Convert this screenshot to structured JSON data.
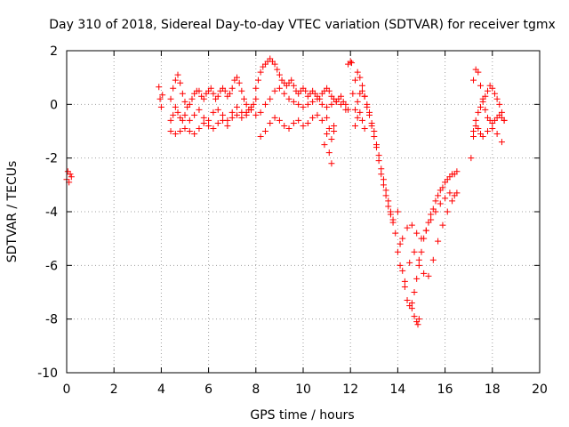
{
  "chart_data": {
    "type": "scatter",
    "title": "Day 310 of 2018, Sidereal Day-to-day VTEC variation (SDTVAR) for receiver tgmx",
    "xlabel": "GPS time / hours",
    "ylabel": "SDTVAR / TECUs",
    "xlim": [
      0,
      20
    ],
    "ylim": [
      -10,
      2
    ],
    "xticks": [
      0,
      2,
      4,
      6,
      8,
      10,
      12,
      14,
      16,
      18,
      20
    ],
    "yticks": [
      -10,
      -8,
      -6,
      -4,
      -2,
      0,
      2
    ],
    "grid": true,
    "marker": "+",
    "color": "#ff0000",
    "series": [
      {
        "name": "SDTVAR",
        "x": [
          0.0,
          0.05,
          0.1,
          0.15,
          0.2,
          3.9,
          3.95,
          4.0,
          4.05,
          4.4,
          4.5,
          4.6,
          4.7,
          4.8,
          4.9,
          5.0,
          5.1,
          5.2,
          5.3,
          5.4,
          5.5,
          5.6,
          5.7,
          5.8,
          5.9,
          6.0,
          6.1,
          6.2,
          6.3,
          6.4,
          6.5,
          6.6,
          6.7,
          6.8,
          6.9,
          7.0,
          7.1,
          7.2,
          7.3,
          7.4,
          7.5,
          7.6,
          7.7,
          7.8,
          7.9,
          8.0,
          4.4,
          4.5,
          4.6,
          4.7,
          4.8,
          4.9,
          5.0,
          5.2,
          5.4,
          5.6,
          5.8,
          6.0,
          6.2,
          6.4,
          6.6,
          6.8,
          7.0,
          7.2,
          7.4,
          7.6,
          7.8,
          4.4,
          4.6,
          4.8,
          5.0,
          5.2,
          5.4,
          5.6,
          5.8,
          6.0,
          6.2,
          6.4,
          6.6,
          6.8,
          7.0,
          7.2,
          7.4,
          7.6,
          7.8,
          8.0,
          8.0,
          8.1,
          8.2,
          8.3,
          8.4,
          8.5,
          8.6,
          8.7,
          8.8,
          8.9,
          9.0,
          9.1,
          9.2,
          9.3,
          9.4,
          9.5,
          9.6,
          9.7,
          9.8,
          9.9,
          10.0,
          10.1,
          10.2,
          10.3,
          10.4,
          10.5,
          10.6,
          10.7,
          10.8,
          10.9,
          11.0,
          11.1,
          11.2,
          11.3,
          11.4,
          11.5,
          11.6,
          11.7,
          11.8,
          11.9,
          8.2,
          8.4,
          8.6,
          8.8,
          9.0,
          9.2,
          9.4,
          9.6,
          9.8,
          10.0,
          10.2,
          10.4,
          10.6,
          10.8,
          11.0,
          11.2,
          11.4,
          11.6,
          11.8,
          8.2,
          8.4,
          8.6,
          8.8,
          9.0,
          9.2,
          9.4,
          9.6,
          9.8,
          10.0,
          10.2,
          10.4,
          10.6,
          10.8,
          11.0,
          10.9,
          11.0,
          11.1,
          11.1,
          11.2,
          11.2,
          11.3,
          11.3,
          11.9,
          12.0,
          12.05,
          12.1,
          12.2,
          12.3,
          12.4,
          12.5,
          12.6,
          12.7,
          12.8,
          12.9,
          13.0,
          13.1,
          13.2,
          13.3,
          13.4,
          13.5,
          13.6,
          13.7,
          13.8,
          13.9,
          12.2,
          12.3,
          12.4,
          12.5,
          12.6,
          12.7,
          12.8,
          12.9,
          13.0,
          13.1,
          13.2,
          13.3,
          13.4,
          13.5,
          13.6,
          13.7,
          13.8,
          12.2,
          12.3,
          12.4,
          12.5,
          12.6,
          14.0,
          14.1,
          14.2,
          14.3,
          14.4,
          14.5,
          14.6,
          14.7,
          14.8,
          14.9,
          15.0,
          15.1,
          15.2,
          15.3,
          15.4,
          15.5,
          15.6,
          15.7,
          15.8,
          15.9,
          16.0,
          16.1,
          16.2,
          16.3,
          16.4,
          16.5,
          14.0,
          14.2,
          14.4,
          14.6,
          14.8,
          15.0,
          15.2,
          15.4,
          15.6,
          15.8,
          16.0,
          16.2,
          16.4,
          14.1,
          14.3,
          14.5,
          14.7,
          14.9,
          15.1,
          15.3,
          15.5,
          15.7,
          15.9,
          16.1,
          16.3,
          16.5,
          14.6,
          14.7,
          14.8,
          14.85,
          14.9,
          17.1,
          17.2,
          17.3,
          17.4,
          17.5,
          17.6,
          17.7,
          17.8,
          17.9,
          18.0,
          18.1,
          18.2,
          18.3,
          18.4,
          18.5,
          17.2,
          17.3,
          17.4,
          17.5,
          17.6,
          17.7,
          17.8,
          17.9,
          18.0,
          18.1,
          18.2,
          18.3,
          18.4,
          18.5,
          17.2,
          17.3,
          17.4,
          17.5,
          17.6,
          17.8,
          18.0,
          18.2,
          18.4
        ],
        "y": [
          -2.8,
          -2.5,
          -2.9,
          -2.6,
          -2.7,
          0.65,
          0.2,
          -0.1,
          0.35,
          0.2,
          0.6,
          0.9,
          1.1,
          0.8,
          0.4,
          0.1,
          -0.1,
          0.0,
          0.2,
          0.4,
          0.5,
          0.5,
          0.3,
          0.2,
          0.4,
          0.5,
          0.6,
          0.4,
          0.2,
          0.3,
          0.5,
          0.6,
          0.5,
          0.3,
          0.4,
          0.6,
          0.9,
          1.0,
          0.8,
          0.5,
          0.2,
          0.0,
          -0.2,
          -0.1,
          0.0,
          0.2,
          -0.6,
          -0.4,
          -0.1,
          -0.3,
          -0.5,
          -0.6,
          -0.4,
          -0.6,
          -0.4,
          -0.2,
          -0.5,
          -0.6,
          -0.3,
          -0.2,
          -0.4,
          -0.6,
          -0.3,
          -0.1,
          -0.3,
          -0.4,
          -0.2,
          -1.0,
          -1.1,
          -1.0,
          -0.9,
          -1.0,
          -1.1,
          -0.9,
          -0.7,
          -0.8,
          -0.9,
          -0.7,
          -0.6,
          -0.8,
          -0.5,
          -0.4,
          -0.5,
          -0.3,
          -0.2,
          -0.4,
          0.6,
          0.9,
          1.2,
          1.4,
          1.5,
          1.6,
          1.7,
          1.6,
          1.5,
          1.3,
          1.1,
          0.9,
          0.8,
          0.7,
          0.8,
          0.9,
          0.7,
          0.5,
          0.4,
          0.5,
          0.6,
          0.5,
          0.3,
          0.4,
          0.5,
          0.4,
          0.3,
          0.2,
          0.4,
          0.5,
          0.6,
          0.5,
          0.3,
          0.2,
          0.1,
          0.2,
          0.3,
          0.1,
          0.0,
          -0.2,
          -0.3,
          0.0,
          0.2,
          0.5,
          0.6,
          0.4,
          0.2,
          0.1,
          0.0,
          -0.1,
          0.0,
          0.1,
          0.2,
          0.0,
          -0.1,
          0.0,
          0.1,
          0.0,
          -0.2,
          -1.2,
          -1.0,
          -0.7,
          -0.5,
          -0.6,
          -0.8,
          -0.9,
          -0.7,
          -0.6,
          -0.8,
          -0.7,
          -0.5,
          -0.4,
          -0.6,
          -0.5,
          -1.5,
          -1.1,
          -1.8,
          -0.9,
          -2.2,
          -1.3,
          -1.0,
          -0.8,
          1.5,
          1.6,
          1.55,
          0.4,
          0.9,
          1.2,
          1.0,
          0.7,
          0.3,
          -0.1,
          -0.4,
          -0.8,
          -1.2,
          -1.6,
          -2.1,
          -2.6,
          -3.0,
          -3.4,
          -3.8,
          -4.1,
          -4.4,
          -4.8,
          -0.2,
          0.1,
          0.4,
          0.5,
          0.3,
          0.0,
          -0.3,
          -0.7,
          -1.0,
          -1.5,
          -1.9,
          -2.4,
          -2.8,
          -3.2,
          -3.6,
          -4.0,
          -4.3,
          -0.8,
          -0.5,
          -0.3,
          -0.6,
          -0.9,
          -4.0,
          -5.2,
          -6.2,
          -6.8,
          -7.3,
          -7.5,
          -7.4,
          -7.0,
          -6.5,
          -6.0,
          -5.5,
          -5.0,
          -4.7,
          -4.4,
          -4.1,
          -3.9,
          -3.6,
          -3.4,
          -3.2,
          -3.1,
          -2.9,
          -2.8,
          -2.7,
          -2.6,
          -2.6,
          -2.5,
          -5.5,
          -5.0,
          -4.6,
          -4.5,
          -4.8,
          -5.0,
          -4.7,
          -4.3,
          -4.0,
          -3.7,
          -3.5,
          -3.3,
          -3.4,
          -6.0,
          -6.6,
          -5.9,
          -5.5,
          -5.8,
          -6.3,
          -6.4,
          -5.8,
          -5.1,
          -4.5,
          -4.0,
          -3.6,
          -3.3,
          -7.6,
          -7.9,
          -8.1,
          -8.2,
          -8.0,
          -2.0,
          -1.2,
          -0.6,
          -0.3,
          -0.1,
          0.1,
          0.3,
          0.5,
          0.7,
          0.6,
          0.4,
          0.2,
          0.0,
          -0.3,
          -0.6,
          0.9,
          1.3,
          1.2,
          0.7,
          0.2,
          -0.2,
          -0.5,
          -0.6,
          -0.7,
          -0.6,
          -0.5,
          -0.4,
          -0.5,
          -0.6,
          -1.0,
          -0.8,
          -0.9,
          -1.1,
          -1.2,
          -1.0,
          -0.9,
          -1.1,
          -1.4
        ]
      }
    ]
  }
}
